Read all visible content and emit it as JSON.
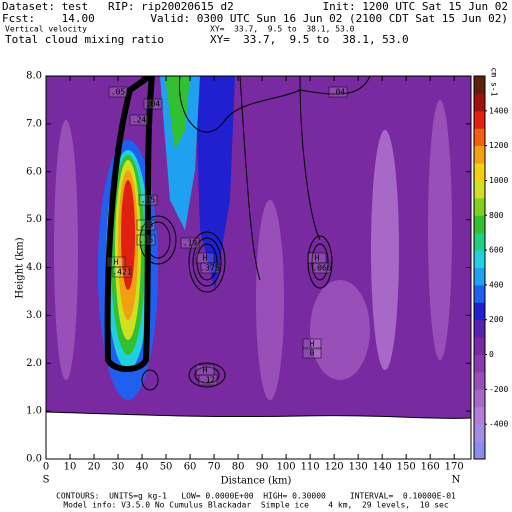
{
  "chart_data": {
    "type": "contour",
    "dataset": "Dataset: test   RIP: rip20020615 d2",
    "init": "Init: 1200 UTC Sat 15 Jun 02",
    "fcst": "Fcst:    14.00",
    "valid": "Valid: 0300 UTC Sun 16 Jun 02 (2100 CDT Sat 15 Jun 02)",
    "fields": [
      {
        "name": "Vertical velocity",
        "xy": "XY=  33.7,  9.5 to  38.1, 53.0",
        "color": "#b85c00"
      },
      {
        "name": "Total cloud mixing ratio",
        "xy": "XY=  33.7,  9.5 to  38.1, 53.0",
        "color": "#000000"
      }
    ],
    "xlabel": "Distance (km)",
    "ylabel": "Height (km)",
    "x_ends": [
      "S",
      "N"
    ],
    "xlim": [
      0,
      177
    ],
    "xticks": [
      0,
      10,
      20,
      30,
      40,
      50,
      60,
      70,
      80,
      90,
      100,
      110,
      120,
      130,
      140,
      150,
      160,
      170
    ],
    "ylim": [
      0,
      8
    ],
    "yticks": [
      {
        "value": 0,
        "label": "0.0"
      },
      {
        "value": 1,
        "label": "1.0"
      },
      {
        "value": 2,
        "label": "2.0"
      },
      {
        "value": 3,
        "label": "3.0"
      },
      {
        "value": 4,
        "label": "4.0"
      },
      {
        "value": 5,
        "label": "5.0"
      },
      {
        "value": 6,
        "label": "6.0"
      },
      {
        "value": 7,
        "label": "7.0"
      },
      {
        "value": 8,
        "label": "8.0"
      }
    ],
    "colorbar": {
      "label": "cm s-1",
      "lim": [
        -600,
        1600
      ],
      "ticks": [
        1400,
        1200,
        1000,
        800,
        600,
        400,
        200,
        0,
        -200,
        -400
      ],
      "colors": [
        "#8c8cf0",
        "#a28ce8",
        "#b47ed8",
        "#a868c8",
        "#9850b8",
        "#8a3aac",
        "#7a2aa0",
        "#5a20b0",
        "#2020d0",
        "#2060f0",
        "#20a0f0",
        "#20d0e0",
        "#20d080",
        "#30c030",
        "#80d020",
        "#d0e020",
        "#f0d010",
        "#f0a010",
        "#f06010",
        "#e02010",
        "#a01010",
        "#602010"
      ]
    },
    "annotations": [
      ".05",
      ".04",
      ".24",
      ".04",
      ".15",
      ".13",
      ".15",
      ".19",
      "H",
      ".421",
      "H",
      ".375",
      "H",
      ".066",
      "H",
      "0",
      "H",
      ".12"
    ],
    "footer": [
      "CONTOURS:  UNITS=g kg-1   LOW= 0.0000E+00  HIGH= 0.30000     INTERVAL=  0.10000E-01",
      "Model info: V3.5.0 No Cumulus Blackadar  Simple ice    4 km,  29 levels,  10 sec"
    ]
  }
}
